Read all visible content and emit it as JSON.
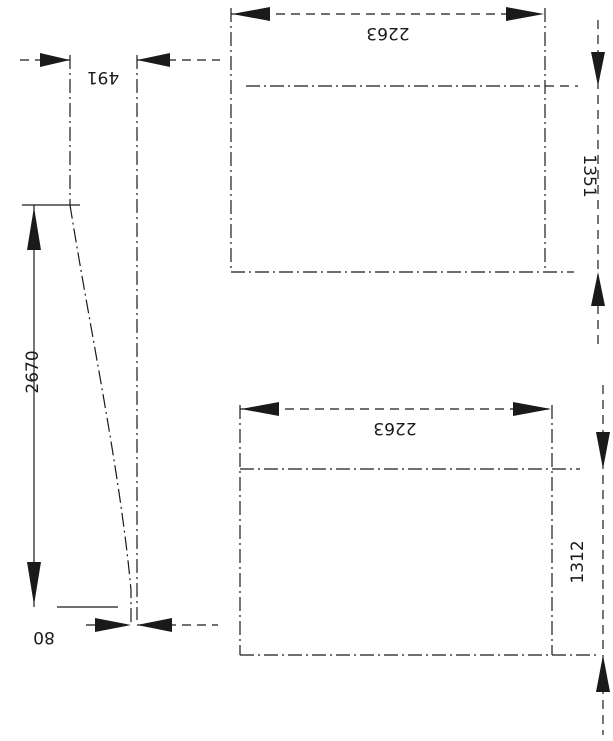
{
  "diagram": {
    "bevel_piece": {
      "top_width": "491",
      "height": "2670",
      "bottom_width": "80"
    },
    "upper_panel": {
      "width": "2263",
      "height": "1351"
    },
    "lower_panel": {
      "width": "2263",
      "height": "1312"
    }
  }
}
